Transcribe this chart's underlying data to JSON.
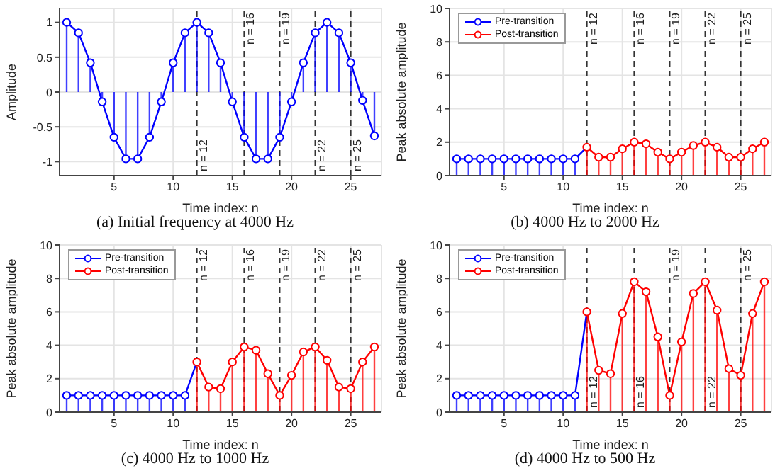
{
  "chart_data": [
    {
      "type": "lollipop",
      "title": "(a) Initial frequency at 4000 Hz",
      "xlabel": "Time index: n",
      "ylabel": "Amplitude",
      "xlim": [
        0.4,
        27.6
      ],
      "xticks": [
        5,
        10,
        15,
        20,
        25
      ],
      "ylim": [
        -1.2,
        1.2
      ],
      "yticks": [
        -1,
        -0.5,
        0,
        0.5,
        1
      ],
      "grid": true,
      "marker": "circle",
      "line_style": "solid",
      "series": [
        {
          "type": "line",
          "marker": "none",
          "color": "#0000ff",
          "x": [
            1,
            2,
            3,
            4,
            5,
            6,
            7,
            8,
            9,
            10,
            11,
            12,
            13,
            14,
            15,
            16,
            17,
            18,
            19,
            20,
            21,
            22,
            23,
            24,
            25,
            26,
            27
          ],
          "values": [
            1,
            0.85,
            0.42,
            -0.14,
            -0.65,
            -0.96,
            -0.96,
            -0.65,
            -0.14,
            0.42,
            0.85,
            1,
            0.85,
            0.42,
            -0.14,
            -0.65,
            -0.96,
            -0.96,
            -0.65,
            -0.14,
            0.42,
            0.85,
            1,
            0.85,
            0.42,
            -0.12,
            -0.63
          ]
        },
        {
          "color": "#0000ff",
          "x": [
            1,
            2,
            3,
            4,
            5,
            6,
            7,
            8,
            9,
            10,
            11,
            12,
            13,
            14,
            15,
            16,
            17,
            18,
            19,
            20,
            21,
            22,
            23,
            24,
            25,
            26,
            27
          ],
          "values": [
            1,
            0.85,
            0.42,
            -0.14,
            -0.65,
            -0.96,
            -0.96,
            -0.65,
            -0.14,
            0.42,
            0.85,
            1,
            0.85,
            0.42,
            -0.14,
            -0.65,
            -0.96,
            -0.96,
            -0.65,
            -0.14,
            0.42,
            0.85,
            1,
            0.85,
            0.42,
            -0.12,
            -0.63
          ]
        }
      ],
      "ref_lines": [
        {
          "axis": "x",
          "value": 12,
          "label": "n = 12",
          "line_style": "dashed",
          "color": "#333333"
        },
        {
          "axis": "x",
          "value": 16,
          "label": "n = 16",
          "line_style": "dashed",
          "color": "#333333"
        },
        {
          "axis": "x",
          "value": 19,
          "label": "n = 19",
          "line_style": "dashed",
          "color": "#333333"
        },
        {
          "axis": "x",
          "value": 22,
          "label": "n = 22",
          "line_style": "dashed",
          "color": "#333333"
        },
        {
          "axis": "x",
          "value": 25,
          "label": "n = 25",
          "line_style": "dashed",
          "color": "#333333"
        }
      ]
    },
    {
      "type": "lollipop",
      "title": "(b) 4000 Hz to 2000 Hz",
      "xlabel": "Time index: n",
      "ylabel": "Peak absolute amplitude",
      "xlim": [
        0.4,
        27.6
      ],
      "xticks": [
        5,
        10,
        15,
        20,
        25
      ],
      "ylim": [
        0,
        10
      ],
      "yticks": [
        0,
        2,
        4,
        6,
        8,
        10
      ],
      "grid": true,
      "legend": "top left",
      "marker": "circle",
      "line_style": "solid",
      "series": [
        {
          "type": "line",
          "marker": "none",
          "color": "#0000ff",
          "x": [
            1,
            2,
            3,
            4,
            5,
            6,
            7,
            8,
            9,
            10,
            11,
            12
          ],
          "values": [
            1,
            1,
            1,
            1,
            1,
            1,
            1,
            1,
            1,
            1,
            1,
            1.7
          ]
        },
        {
          "type": "line",
          "marker": "none",
          "color": "#ff0000",
          "x": [
            12,
            13,
            14,
            15,
            16,
            17,
            18,
            19,
            20,
            21,
            22,
            23,
            24,
            25,
            26,
            27
          ],
          "values": [
            1.7,
            1.1,
            1.1,
            1.6,
            2,
            1.9,
            1.4,
            1,
            1.4,
            1.8,
            2,
            1.7,
            1.1,
            1.1,
            1.6,
            2
          ]
        },
        {
          "name": "Pre-transition",
          "color": "#0000ff",
          "x": [
            1,
            2,
            3,
            4,
            5,
            6,
            7,
            8,
            9,
            10,
            11
          ],
          "values": [
            1,
            1,
            1,
            1,
            1,
            1,
            1,
            1,
            1,
            1,
            1
          ]
        },
        {
          "name": "Post-transition",
          "color": "#ff0000",
          "x": [
            12,
            13,
            14,
            15,
            16,
            17,
            18,
            19,
            20,
            21,
            22,
            23,
            24,
            25,
            26,
            27
          ],
          "values": [
            1.7,
            1.1,
            1.1,
            1.6,
            2,
            1.9,
            1.4,
            1,
            1.4,
            1.8,
            2,
            1.7,
            1.1,
            1.1,
            1.6,
            2
          ]
        }
      ],
      "ref_lines": [
        {
          "axis": "x",
          "value": 12,
          "label": "n = 12",
          "line_style": "dashed",
          "color": "#333333"
        },
        {
          "axis": "x",
          "value": 16,
          "label": "n = 16",
          "line_style": "dashed",
          "color": "#333333"
        },
        {
          "axis": "x",
          "value": 19,
          "label": "n = 19",
          "line_style": "dashed",
          "color": "#333333"
        },
        {
          "axis": "x",
          "value": 22,
          "label": "n = 22",
          "line_style": "dashed",
          "color": "#333333"
        },
        {
          "axis": "x",
          "value": 25,
          "label": "n = 25",
          "line_style": "dashed",
          "color": "#333333"
        }
      ]
    },
    {
      "type": "lollipop",
      "title": "(c) 4000 Hz to 1000 Hz",
      "xlabel": "Time index: n",
      "ylabel": "Peak absolute amplitude",
      "xlim": [
        0.4,
        27.6
      ],
      "xticks": [
        5,
        10,
        15,
        20,
        25
      ],
      "ylim": [
        0,
        10
      ],
      "yticks": [
        0,
        2,
        4,
        6,
        8,
        10
      ],
      "grid": true,
      "legend": "top left",
      "marker": "circle",
      "line_style": "solid",
      "series": [
        {
          "type": "line",
          "marker": "none",
          "color": "#0000ff",
          "x": [
            1,
            2,
            3,
            4,
            5,
            6,
            7,
            8,
            9,
            10,
            11,
            12
          ],
          "values": [
            1,
            1,
            1,
            1,
            1,
            1,
            1,
            1,
            1,
            1,
            1,
            3
          ]
        },
        {
          "type": "line",
          "marker": "none",
          "color": "#ff0000",
          "x": [
            12,
            13,
            14,
            15,
            16,
            17,
            18,
            19,
            20,
            21,
            22,
            23,
            24,
            25,
            26,
            27
          ],
          "values": [
            3,
            1.5,
            1.4,
            3,
            3.9,
            3.7,
            2.3,
            1,
            2.2,
            3.6,
            3.9,
            3.1,
            1.5,
            1.4,
            3,
            3.9
          ]
        },
        {
          "name": "Pre-transition",
          "color": "#0000ff",
          "x": [
            1,
            2,
            3,
            4,
            5,
            6,
            7,
            8,
            9,
            10,
            11
          ],
          "values": [
            1,
            1,
            1,
            1,
            1,
            1,
            1,
            1,
            1,
            1,
            1
          ]
        },
        {
          "name": "Post-transition",
          "color": "#ff0000",
          "x": [
            12,
            13,
            14,
            15,
            16,
            17,
            18,
            19,
            20,
            21,
            22,
            23,
            24,
            25,
            26,
            27
          ],
          "values": [
            3,
            1.5,
            1.4,
            3,
            3.9,
            3.7,
            2.3,
            1,
            2.2,
            3.6,
            3.9,
            3.1,
            1.5,
            1.4,
            3,
            3.9
          ]
        }
      ],
      "ref_lines": [
        {
          "axis": "x",
          "value": 12,
          "label": "n = 12",
          "line_style": "dashed",
          "color": "#333333"
        },
        {
          "axis": "x",
          "value": 16,
          "label": "n = 16",
          "line_style": "dashed",
          "color": "#333333"
        },
        {
          "axis": "x",
          "value": 19,
          "label": "n = 19",
          "line_style": "dashed",
          "color": "#333333"
        },
        {
          "axis": "x",
          "value": 22,
          "label": "n = 22",
          "line_style": "dashed",
          "color": "#333333"
        },
        {
          "axis": "x",
          "value": 25,
          "label": "n = 25",
          "line_style": "dashed",
          "color": "#333333"
        }
      ]
    },
    {
      "type": "lollipop",
      "title": "(d) 4000 Hz to 500 Hz",
      "xlabel": "Time index: n",
      "ylabel": "Peak absolute amplitude",
      "xlim": [
        0.4,
        27.6
      ],
      "xticks": [
        5,
        10,
        15,
        20,
        25
      ],
      "ylim": [
        0,
        10
      ],
      "yticks": [
        0,
        2,
        4,
        6,
        8,
        10
      ],
      "grid": true,
      "legend": "top left",
      "marker": "circle",
      "line_style": "solid",
      "series": [
        {
          "type": "line",
          "marker": "none",
          "color": "#0000ff",
          "x": [
            1,
            2,
            3,
            4,
            5,
            6,
            7,
            8,
            9,
            10,
            11,
            12
          ],
          "values": [
            1,
            1,
            1,
            1,
            1,
            1,
            1,
            1,
            1,
            1,
            1,
            6
          ]
        },
        {
          "type": "line",
          "marker": "none",
          "color": "#ff0000",
          "x": [
            12,
            13,
            14,
            15,
            16,
            17,
            18,
            19,
            20,
            21,
            22,
            23,
            24,
            25,
            26,
            27
          ],
          "values": [
            6,
            2.5,
            2.3,
            5.9,
            7.8,
            7.2,
            4.5,
            1,
            4.2,
            7.1,
            7.8,
            6.1,
            2.6,
            2.2,
            5.9,
            7.8
          ]
        },
        {
          "name": "Pre-transition",
          "color": "#0000ff",
          "x": [
            1,
            2,
            3,
            4,
            5,
            6,
            7,
            8,
            9,
            10,
            11
          ],
          "values": [
            1,
            1,
            1,
            1,
            1,
            1,
            1,
            1,
            1,
            1,
            1
          ]
        },
        {
          "name": "Post-transition",
          "color": "#ff0000",
          "x": [
            12,
            13,
            14,
            15,
            16,
            17,
            18,
            19,
            20,
            21,
            22,
            23,
            24,
            25,
            26,
            27
          ],
          "values": [
            6,
            2.5,
            2.3,
            5.9,
            7.8,
            7.2,
            4.5,
            1,
            4.2,
            7.1,
            7.8,
            6.1,
            2.6,
            2.2,
            5.9,
            7.8
          ]
        }
      ],
      "ref_lines": [
        {
          "axis": "x",
          "value": 12,
          "label": "n = 12",
          "line_style": "dashed",
          "color": "#333333"
        },
        {
          "axis": "x",
          "value": 16,
          "label": "n = 16",
          "line_style": "dashed",
          "color": "#333333"
        },
        {
          "axis": "x",
          "value": 19,
          "label": "n = 19",
          "line_style": "dashed",
          "color": "#333333"
        },
        {
          "axis": "x",
          "value": 22,
          "label": "n = 22",
          "line_style": "dashed",
          "color": "#333333"
        },
        {
          "axis": "x",
          "value": 25,
          "label": "n = 25",
          "line_style": "dashed",
          "color": "#333333"
        }
      ]
    }
  ]
}
